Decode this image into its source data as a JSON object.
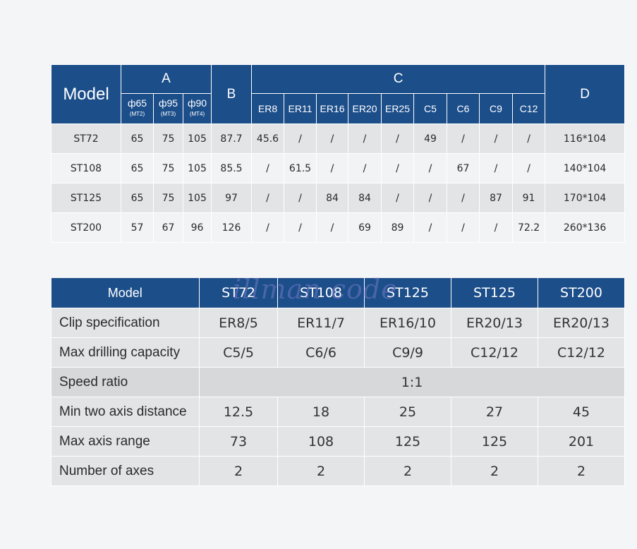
{
  "table1": {
    "model_label": "Model",
    "group_a": "A",
    "group_b": "B",
    "group_c": "C",
    "group_d": "D",
    "a_cols": [
      {
        "top": "ф65",
        "bottom": "(MT2)"
      },
      {
        "top": "ф95",
        "bottom": "(MT3)"
      },
      {
        "top": "ф90",
        "bottom": "(MT4)"
      }
    ],
    "c_cols": [
      "ER8",
      "ER11",
      "ER16",
      "ER20",
      "ER25",
      "C5",
      "C6",
      "C9",
      "C12"
    ],
    "rows": [
      {
        "model": "ST72",
        "a": [
          "65",
          "75",
          "105"
        ],
        "b": "87.7",
        "c": [
          "45.6",
          "/",
          "/",
          "/",
          "/",
          "49",
          "/",
          "/",
          "/"
        ],
        "d": "116*104"
      },
      {
        "model": "ST108",
        "a": [
          "65",
          "75",
          "105"
        ],
        "b": "85.5",
        "c": [
          "/",
          "61.5",
          "/",
          "/",
          "/",
          "/",
          "67",
          "/",
          "/"
        ],
        "d": "140*104"
      },
      {
        "model": "ST125",
        "a": [
          "65",
          "75",
          "105"
        ],
        "b": "97",
        "c": [
          "/",
          "/",
          "84",
          "84",
          "/",
          "/",
          "/",
          "87",
          "91"
        ],
        "d": "170*104"
      },
      {
        "model": "ST200",
        "a": [
          "57",
          "67",
          "96"
        ],
        "b": "126",
        "c": [
          "/",
          "/",
          "/",
          "69",
          "89",
          "/",
          "/",
          "/",
          "72.2"
        ],
        "d": "260*136"
      }
    ]
  },
  "table2": {
    "model_label": "Model",
    "models": [
      "ST72",
      "ST108",
      "ST125",
      "ST125",
      "ST200"
    ],
    "rows": [
      {
        "label": "Clip specification",
        "values": [
          "ER8/5",
          "ER11/7",
          "ER16/10",
          "ER20/13",
          "ER20/13"
        ]
      },
      {
        "label": "Max drilling capacity",
        "values": [
          "C5/5",
          "C6/6",
          "C9/9",
          "C12/12",
          "C12/12"
        ]
      },
      {
        "label": "Min two axis distance",
        "values": [
          "12.5",
          "18",
          "25",
          "27",
          "45"
        ]
      },
      {
        "label": "Max axis range",
        "values": [
          "73",
          "108",
          "125",
          "125",
          "201"
        ]
      },
      {
        "label": "Number of axes",
        "values": [
          "2",
          "2",
          "2",
          "2",
          "2"
        ]
      }
    ],
    "speed_ratio": {
      "label": "Speed ratio",
      "value": "1:1"
    }
  },
  "watermark_text": "illman code"
}
